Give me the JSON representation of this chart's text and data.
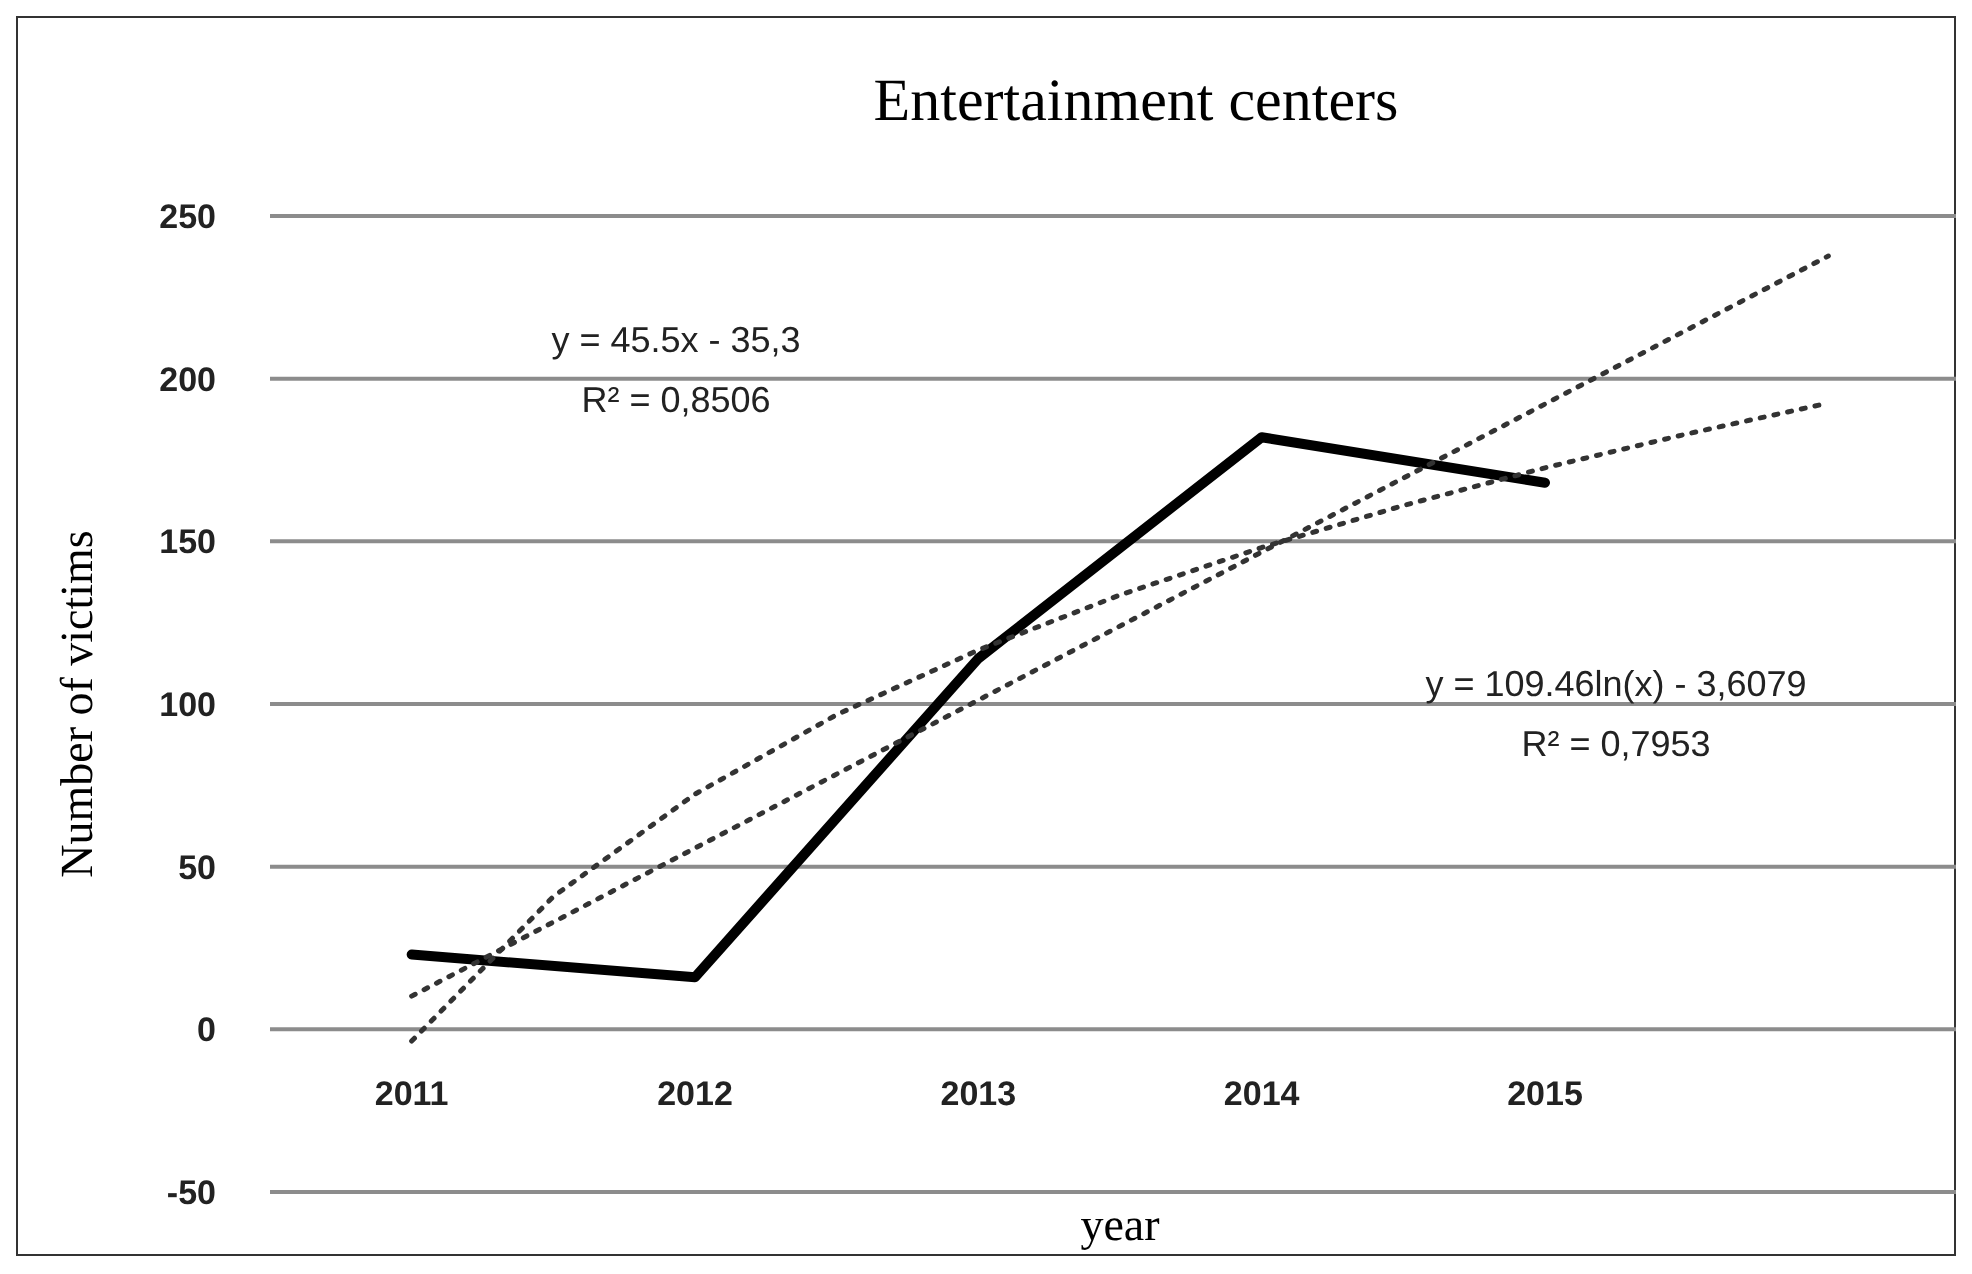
{
  "chart_data": {
    "type": "line",
    "title": "Entertainment centers",
    "xlabel": "year",
    "ylabel": "Number of victims",
    "x": [
      2011,
      2012,
      2013,
      2014,
      2015
    ],
    "xlim": [
      2010.5,
      2016.5
    ],
    "xticks": [
      2011,
      2012,
      2013,
      2014,
      2015
    ],
    "ylim": [
      -50,
      250
    ],
    "yticks": [
      -50,
      0,
      50,
      100,
      150,
      200,
      250
    ],
    "grid": "y",
    "marker": "none",
    "series": [
      {
        "color": "#000000",
        "values": [
          23,
          16,
          114,
          182,
          168
        ],
        "line_style": "solid"
      },
      {
        "type": "line",
        "color": "#333333",
        "line_style": "dotted",
        "x": [
          2011,
          2012,
          2013,
          2014,
          2015,
          2016
        ],
        "values": [
          10.2,
          55.7,
          101.2,
          146.7,
          192.2,
          237.7
        ]
      },
      {
        "type": "line",
        "color": "#333333",
        "line_style": "dotted",
        "x": [
          2011,
          2011.5,
          2012,
          2012.5,
          2013,
          2013.5,
          2014,
          2014.5,
          2015,
          2015.5,
          2016
        ],
        "values": [
          -3.6,
          40.8,
          72.3,
          96.7,
          116.6,
          133.5,
          148.1,
          161,
          172.6,
          183,
          192.5
        ]
      }
    ],
    "annotations": [
      "y = 45.5x - 35,3",
      "R² = 0,8506",
      "y = 109.46ln(x) - 3,6079",
      "R² = 0,7953"
    ]
  }
}
